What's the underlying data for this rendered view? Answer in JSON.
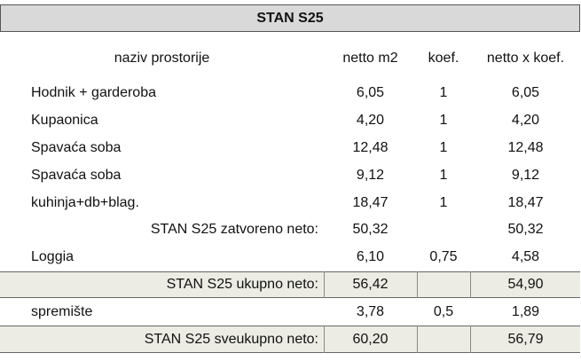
{
  "table": {
    "title": "STAN S25",
    "header": {
      "label": "naziv prostorije",
      "netto": "netto m2",
      "koef": "koef.",
      "netto_koef": "netto x koef."
    },
    "rows": [
      {
        "label": "Hodnik + garderoba",
        "netto": "6,05",
        "koef": "1",
        "netto_koef": "6,05"
      },
      {
        "label": "Kupaonica",
        "netto": "4,20",
        "koef": "1",
        "netto_koef": "4,20"
      },
      {
        "label": "Spavaća soba",
        "netto": "12,48",
        "koef": "1",
        "netto_koef": "12,48"
      },
      {
        "label": "Spavaća soba",
        "netto": "9,12",
        "koef": "1",
        "netto_koef": "9,12"
      },
      {
        "label": "kuhinja+db+blag.",
        "netto": "18,47",
        "koef": "1",
        "netto_koef": "18,47"
      },
      {
        "label": "STAN S25 zatvoreno neto:",
        "netto": "50,32",
        "netto_koef": "50,32"
      },
      {
        "label": "Loggia",
        "netto": "6,10",
        "koef": "0,75",
        "netto_koef": "4,58"
      },
      {
        "label": "STAN S25 ukupno neto:",
        "netto": "56,42",
        "netto_koef": "54,90"
      },
      {
        "label": "spremište",
        "netto": "3,78",
        "koef": "0,5",
        "netto_koef": "1,89"
      },
      {
        "label": "STAN S25 sveukupno neto:",
        "netto": "60,20",
        "netto_koef": "56,79"
      }
    ]
  }
}
